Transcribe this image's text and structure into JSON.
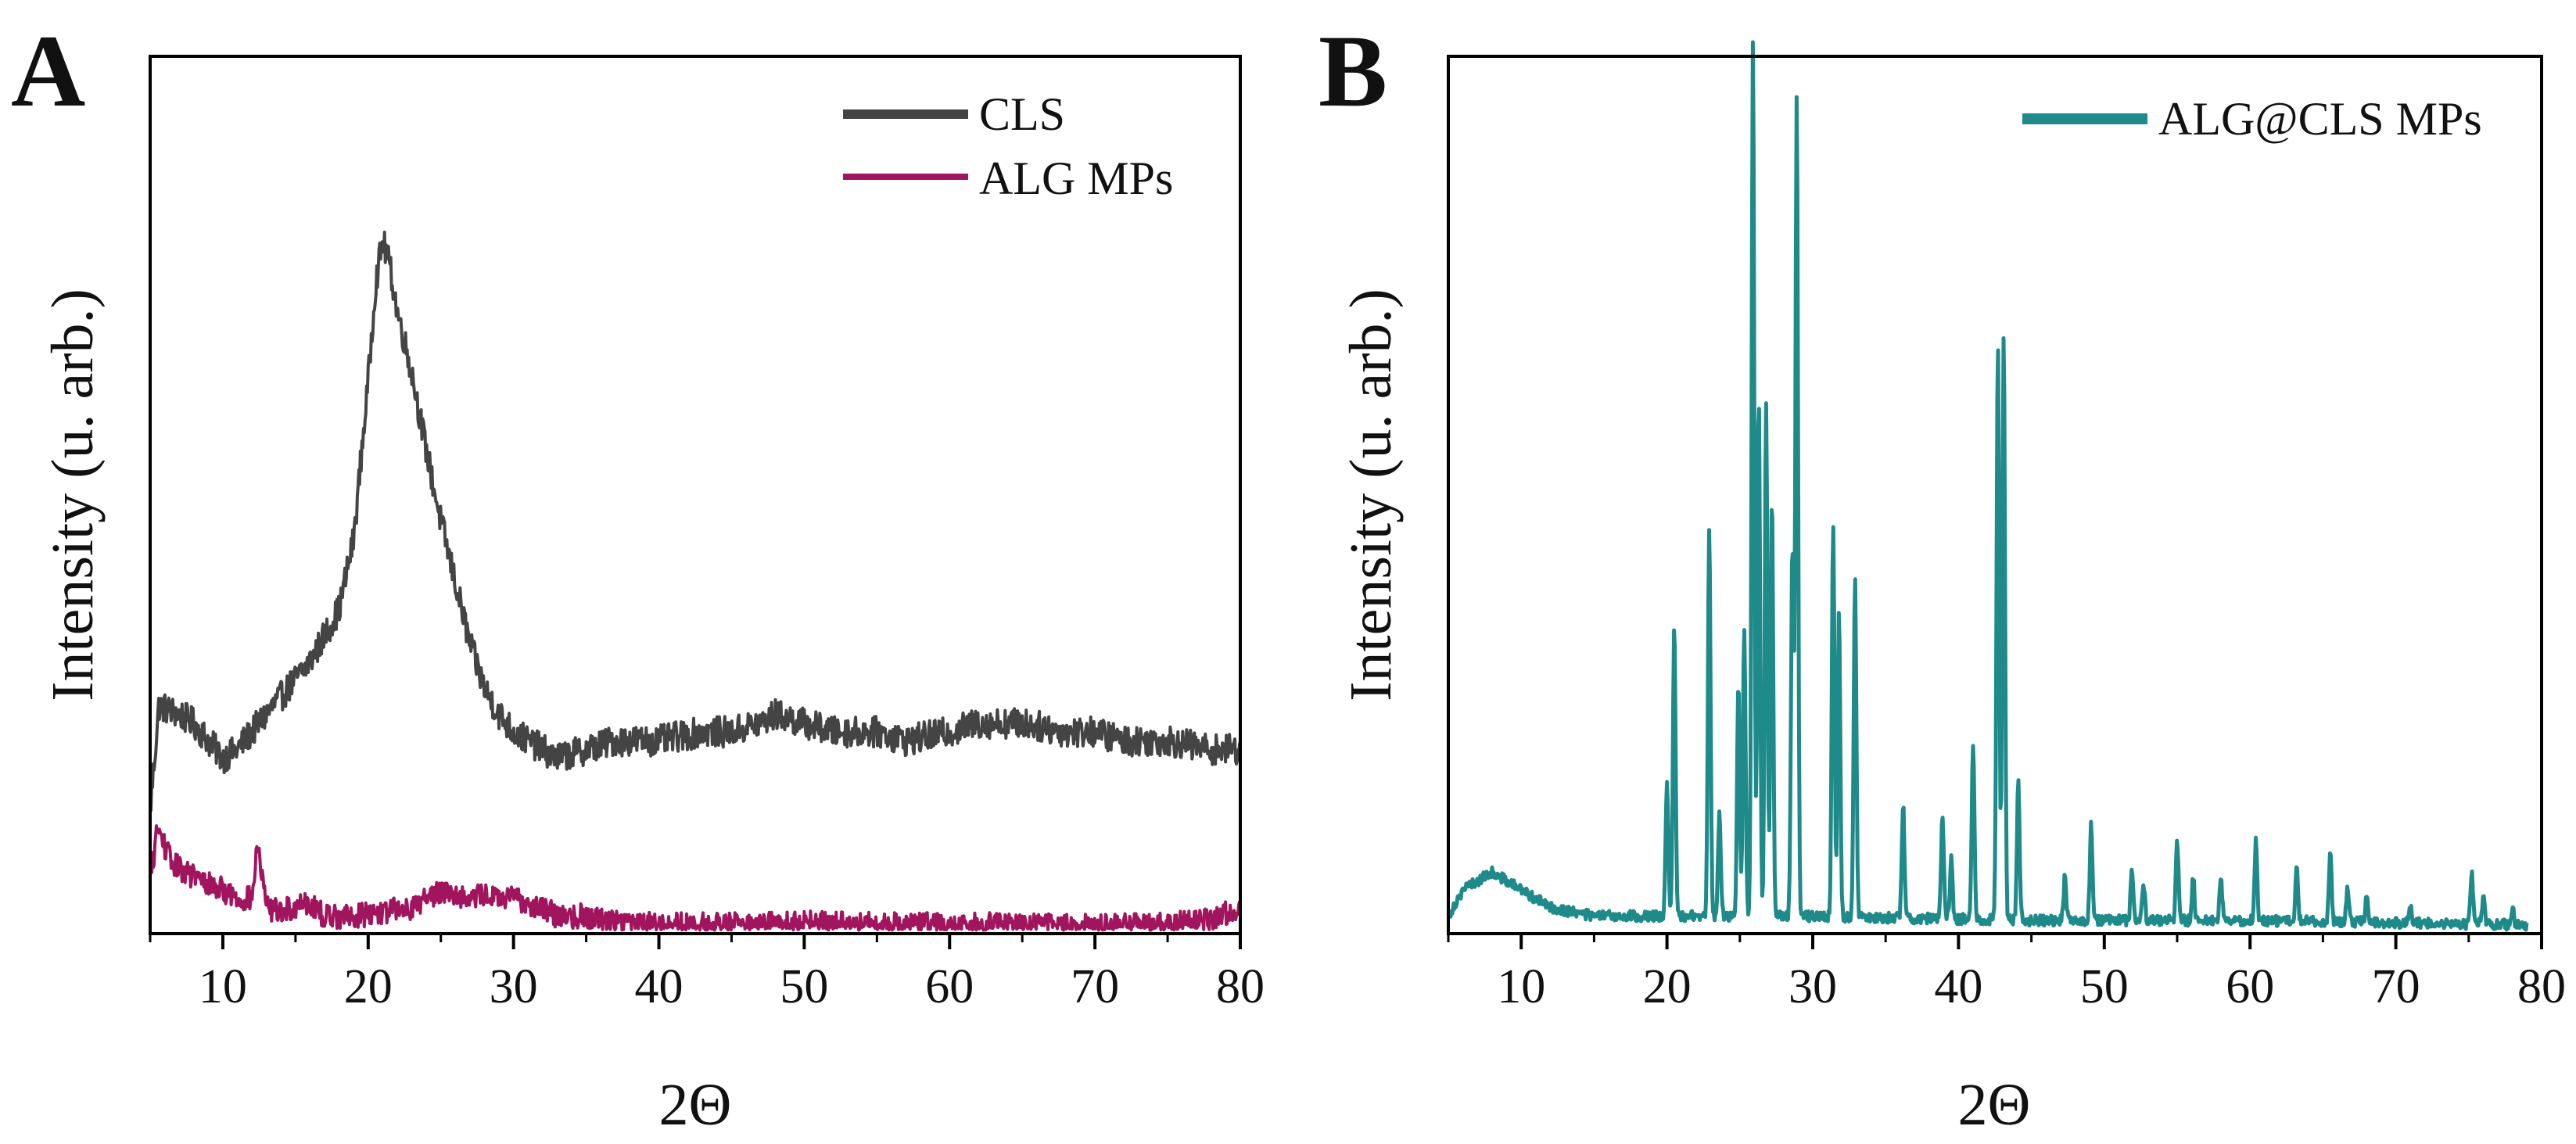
{
  "chart_data": [
    {
      "type": "line",
      "panel_label": "A",
      "xlabel": "2Θ",
      "ylabel": "Intensity (u. arb.)",
      "xlim": [
        5,
        80
      ],
      "ylim": [
        0,
        1
      ],
      "x_ticks": [
        10,
        20,
        30,
        40,
        50,
        60,
        70,
        80
      ],
      "y_tick_labels": false,
      "grid": false,
      "legend_position": "top-right",
      "series": [
        {
          "name": "CLS",
          "color": "#444444",
          "x": [
            5,
            5.6,
            7,
            8,
            9,
            10,
            11,
            12,
            13,
            14,
            15,
            16,
            17,
            18,
            19,
            20,
            20.5,
            21,
            21.5,
            22,
            23,
            24,
            25,
            26,
            27,
            28,
            29,
            30,
            31,
            32,
            33,
            35,
            37,
            40,
            43,
            45,
            47,
            48,
            50,
            52,
            55,
            57,
            60,
            62,
            65,
            68,
            70,
            72,
            75,
            78,
            80
          ],
          "y": [
            0.14,
            0.26,
            0.25,
            0.24,
            0.22,
            0.2,
            0.21,
            0.23,
            0.25,
            0.27,
            0.29,
            0.31,
            0.34,
            0.37,
            0.45,
            0.63,
            0.74,
            0.79,
            0.76,
            0.71,
            0.64,
            0.55,
            0.47,
            0.4,
            0.33,
            0.28,
            0.25,
            0.23,
            0.22,
            0.21,
            0.2,
            0.21,
            0.22,
            0.22,
            0.23,
            0.23,
            0.24,
            0.25,
            0.24,
            0.23,
            0.23,
            0.22,
            0.23,
            0.24,
            0.24,
            0.23,
            0.23,
            0.22,
            0.22,
            0.21,
            0.21
          ]
        },
        {
          "name": "ALG MPs",
          "color": "#a0155e",
          "x": [
            5,
            5.5,
            6.5,
            7.5,
            8.5,
            10,
            11,
            12,
            12.4,
            13,
            14,
            15,
            15.5,
            17,
            19,
            21,
            23,
            24,
            25,
            26,
            27,
            28,
            29,
            30,
            31,
            32,
            33,
            35,
            37,
            40,
            45,
            50,
            55,
            60,
            65,
            70,
            75,
            78,
            80
          ],
          "y": [
            0.06,
            0.12,
            0.08,
            0.07,
            0.06,
            0.05,
            0.04,
            0.04,
            0.1,
            0.03,
            0.025,
            0.03,
            0.04,
            0.02,
            0.02,
            0.025,
            0.03,
            0.04,
            0.05,
            0.045,
            0.04,
            0.045,
            0.04,
            0.04,
            0.035,
            0.03,
            0.02,
            0.02,
            0.015,
            0.01,
            0.01,
            0.012,
            0.01,
            0.01,
            0.01,
            0.008,
            0.01,
            0.015,
            0.03
          ]
        }
      ]
    },
    {
      "type": "line",
      "panel_label": "B",
      "xlabel": "2Θ",
      "ylabel": "Intensity (u. arb.)",
      "xlim": [
        5,
        80
      ],
      "ylim": [
        0,
        1
      ],
      "x_ticks": [
        10,
        20,
        30,
        40,
        50,
        60,
        70,
        80
      ],
      "y_tick_labels": false,
      "grid": false,
      "legend_position": "top-right",
      "series": [
        {
          "name": "ALG@CLS MPs",
          "color": "#1f8a8a",
          "baseline": [
            [
              5,
              0.02
            ],
            [
              6,
              0.05
            ],
            [
              8,
              0.07
            ],
            [
              10,
              0.05
            ],
            [
              12,
              0.03
            ],
            [
              15,
              0.02
            ],
            [
              20,
              0.02
            ],
            [
              30,
              0.02
            ],
            [
              45,
              0.015
            ],
            [
              60,
              0.015
            ],
            [
              79,
              0.01
            ]
          ],
          "peaks": [
            [
              20.0,
              0.15
            ],
            [
              20.5,
              0.33
            ],
            [
              22.9,
              0.44
            ],
            [
              23.6,
              0.12
            ],
            [
              24.9,
              0.27
            ],
            [
              25.3,
              0.33
            ],
            [
              25.9,
              1.0
            ],
            [
              26.3,
              0.6
            ],
            [
              26.8,
              0.59
            ],
            [
              27.2,
              0.48
            ],
            [
              28.6,
              0.42
            ],
            [
              28.9,
              0.94
            ],
            [
              31.4,
              0.45
            ],
            [
              31.8,
              0.35
            ],
            [
              32.9,
              0.39
            ],
            [
              36.2,
              0.13
            ],
            [
              38.9,
              0.12
            ],
            [
              39.5,
              0.07
            ],
            [
              41.0,
              0.2
            ],
            [
              42.7,
              0.66
            ],
            [
              43.1,
              0.67
            ],
            [
              44.1,
              0.16
            ],
            [
              47.3,
              0.05
            ],
            [
              49.1,
              0.11
            ],
            [
              51.9,
              0.06
            ],
            [
              52.7,
              0.04
            ],
            [
              55.0,
              0.09
            ],
            [
              56.1,
              0.05
            ],
            [
              58.0,
              0.05
            ],
            [
              60.4,
              0.09
            ],
            [
              63.2,
              0.06
            ],
            [
              65.5,
              0.08
            ],
            [
              66.7,
              0.04
            ],
            [
              68.0,
              0.03
            ],
            [
              71.0,
              0.02
            ],
            [
              75.2,
              0.06
            ],
            [
              76.0,
              0.03
            ],
            [
              78.0,
              0.02
            ]
          ]
        }
      ]
    }
  ]
}
